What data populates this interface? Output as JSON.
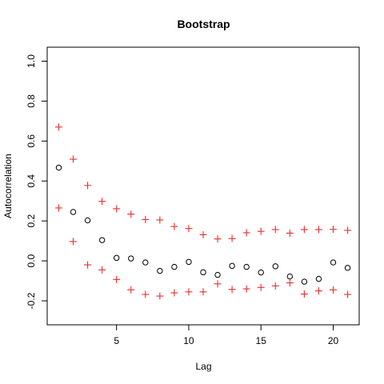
{
  "chart_data": {
    "type": "scatter",
    "title": "Bootstrap",
    "xlabel": "Lag",
    "ylabel": "Autocorrelation",
    "xlim": [
      0.2,
      21.8
    ],
    "ylim": [
      -0.32,
      1.07
    ],
    "x_ticks": [
      5,
      10,
      15,
      20
    ],
    "y_ticks": [
      -0.2,
      0.0,
      0.2,
      0.4,
      0.6,
      0.8,
      1.0
    ],
    "x_tick_labels": [
      "5",
      "10",
      "15",
      "20"
    ],
    "y_tick_labels": [
      "-0.2",
      "0.0",
      "0.2",
      "0.4",
      "0.6",
      "0.8",
      "1.0"
    ],
    "grid": false,
    "legend": false,
    "series": [
      {
        "marker": "circle",
        "color": "#000000",
        "x": [
          1,
          2,
          3,
          4,
          5,
          6,
          7,
          8,
          9,
          10,
          11,
          12,
          13,
          14,
          15,
          16,
          17,
          18,
          19,
          20,
          21
        ],
        "y": [
          0.467,
          0.245,
          0.203,
          0.104,
          0.015,
          0.012,
          -0.008,
          -0.05,
          -0.03,
          -0.005,
          -0.057,
          -0.07,
          -0.025,
          -0.03,
          -0.058,
          -0.027,
          -0.078,
          -0.104,
          -0.09,
          -0.008,
          -0.035
        ]
      },
      {
        "marker": "plus",
        "color": "#e8302a",
        "x": [
          1,
          2,
          3,
          4,
          5,
          6,
          7,
          8,
          9,
          10,
          11,
          12,
          13,
          14,
          15,
          16,
          17,
          18,
          19,
          20,
          21
        ],
        "y": [
          0.67,
          0.509,
          0.378,
          0.298,
          0.261,
          0.234,
          0.207,
          0.205,
          0.172,
          0.162,
          0.131,
          0.11,
          0.112,
          0.141,
          0.148,
          0.157,
          0.139,
          0.157,
          0.157,
          0.158,
          0.153
        ]
      },
      {
        "marker": "plus",
        "color": "#e8302a",
        "x": [
          1,
          2,
          3,
          4,
          5,
          6,
          7,
          8,
          9,
          10,
          11,
          12,
          13,
          14,
          15,
          16,
          17,
          18,
          19,
          20,
          21
        ],
        "y": [
          0.265,
          0.097,
          -0.02,
          -0.045,
          -0.093,
          -0.145,
          -0.168,
          -0.176,
          -0.16,
          -0.155,
          -0.155,
          -0.115,
          -0.143,
          -0.14,
          -0.133,
          -0.125,
          -0.11,
          -0.166,
          -0.15,
          -0.145,
          -0.168
        ]
      }
    ]
  }
}
